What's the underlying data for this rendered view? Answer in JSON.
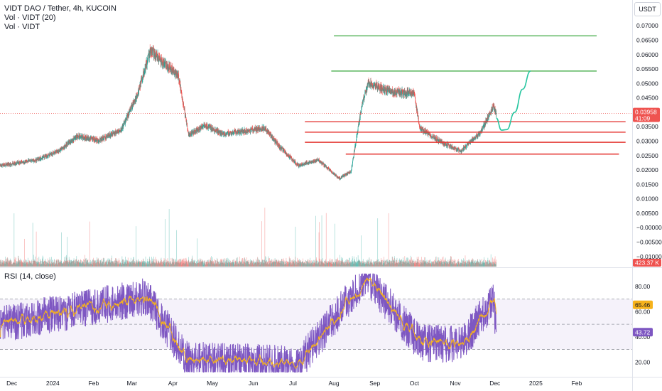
{
  "header": {
    "title": "VIDT DAO / Tether, 4h, KUCOIN",
    "vol_indicator": "Vol · VIDT (20)",
    "vol_indicator_2": "Vol · VIDT",
    "rsi_indicator": "RSI (14, close)",
    "currency": "USDT"
  },
  "colors": {
    "up": "#26a69a",
    "down": "#ef5350",
    "rsi_line": "#7e57c2",
    "rsi_ma": "#f6b21b",
    "resistance": "#4caf50",
    "support": "#e53935",
    "projection": "#26c6a0"
  },
  "chart_data": [
    {
      "type": "candlestick",
      "title": "VIDT DAO / Tether, 4h, KUCOIN",
      "x_ticks": [
        "Dec",
        "2024",
        "Feb",
        "Mar",
        "Apr",
        "May",
        "Jun",
        "Jul",
        "Aug",
        "Sep",
        "Oct",
        "Nov",
        "Dec",
        "2025",
        "Feb"
      ],
      "y_ticks": [
        "0.07000",
        "0.06500",
        "0.06000",
        "0.05500",
        "0.05000",
        "0.04500",
        "0.03500",
        "0.03000",
        "0.02500",
        "0.02000",
        "0.01500",
        "0.01000",
        "0.00500",
        "−0.00000",
        "−0.00500",
        "−0.01000"
      ],
      "ylim": [
        -0.0135,
        0.0735
      ],
      "price_path": [
        {
          "date": "2023-11-22",
          "price": 0.0215
        },
        {
          "date": "2023-12-20",
          "price": 0.0235
        },
        {
          "date": "2024-01-05",
          "price": 0.0265
        },
        {
          "date": "2024-01-20",
          "price": 0.0318
        },
        {
          "date": "2024-02-05",
          "price": 0.0302
        },
        {
          "date": "2024-02-22",
          "price": 0.034
        },
        {
          "date": "2024-03-05",
          "price": 0.046
        },
        {
          "date": "2024-03-15",
          "price": 0.0615
        },
        {
          "date": "2024-03-25",
          "price": 0.057
        },
        {
          "date": "2024-04-05",
          "price": 0.053
        },
        {
          "date": "2024-04-13",
          "price": 0.032
        },
        {
          "date": "2024-04-25",
          "price": 0.0355
        },
        {
          "date": "2024-05-10",
          "price": 0.0325
        },
        {
          "date": "2024-05-25",
          "price": 0.0335
        },
        {
          "date": "2024-06-10",
          "price": 0.0345
        },
        {
          "date": "2024-06-20",
          "price": 0.0285
        },
        {
          "date": "2024-07-05",
          "price": 0.0215
        },
        {
          "date": "2024-07-20",
          "price": 0.0235
        },
        {
          "date": "2024-08-05",
          "price": 0.017
        },
        {
          "date": "2024-08-14",
          "price": 0.0195
        },
        {
          "date": "2024-08-22",
          "price": 0.042
        },
        {
          "date": "2024-08-27",
          "price": 0.05
        },
        {
          "date": "2024-09-15",
          "price": 0.047
        },
        {
          "date": "2024-10-01",
          "price": 0.0465
        },
        {
          "date": "2024-10-05",
          "price": 0.0345
        },
        {
          "date": "2024-10-20",
          "price": 0.03
        },
        {
          "date": "2024-11-05",
          "price": 0.0265
        },
        {
          "date": "2024-11-20",
          "price": 0.033
        },
        {
          "date": "2024-11-30",
          "price": 0.042
        },
        {
          "date": "2024-12-02",
          "price": 0.03958
        }
      ],
      "last_price": "0.03958",
      "countdown": "41:09",
      "resistance_levels": [
        {
          "price": 0.0665,
          "from": "2024-08-01",
          "to": "2025-03-01"
        },
        {
          "price": 0.0543,
          "from": "2024-07-30",
          "to": "2025-03-01"
        }
      ],
      "support_levels": [
        {
          "price": 0.0367,
          "from": "2024-07-10",
          "to": "2025-03-10"
        },
        {
          "price": 0.0331,
          "from": "2024-07-10",
          "to": "2025-03-10"
        },
        {
          "price": 0.0296,
          "from": "2024-07-10",
          "to": "2025-03-10"
        },
        {
          "price": 0.0255,
          "from": "2024-08-10",
          "to": "2025-03-05"
        }
      ],
      "projection": [
        {
          "date": "2024-12-02",
          "price": 0.038
        },
        {
          "date": "2024-12-06",
          "price": 0.0338
        },
        {
          "date": "2024-12-10",
          "price": 0.034
        },
        {
          "date": "2024-12-16",
          "price": 0.04
        },
        {
          "date": "2024-12-22",
          "price": 0.048
        },
        {
          "date": "2024-12-28",
          "price": 0.0543
        }
      ],
      "volume_label": "423.37 K"
    },
    {
      "type": "line",
      "title": "RSI (14, close)",
      "y_ticks": [
        "80.00",
        "60.00",
        "40.00",
        "20.00"
      ],
      "ylim": [
        10,
        93
      ],
      "band": [
        30,
        70
      ],
      "midline": 50,
      "series": [
        {
          "name": "RSI",
          "last": "43.72"
        },
        {
          "name": "RSI-based MA",
          "last": "65.46"
        }
      ],
      "rsi_path": [
        {
          "date": "2023-11-22",
          "value": 50
        },
        {
          "date": "2024-03-12",
          "value": 72
        },
        {
          "date": "2024-04-12",
          "value": 22
        },
        {
          "date": "2024-07-05",
          "value": 18
        },
        {
          "date": "2024-08-25",
          "value": 88
        },
        {
          "date": "2024-10-05",
          "value": 35
        },
        {
          "date": "2024-11-06",
          "value": 34
        },
        {
          "date": "2024-11-30",
          "value": 70
        },
        {
          "date": "2024-12-02",
          "value": 43.72
        }
      ]
    }
  ]
}
